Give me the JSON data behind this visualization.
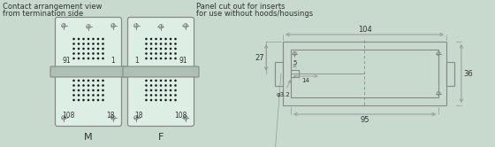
{
  "bg_color": "#c8d9ce",
  "line_color": "#888888",
  "text_color": "#333333",
  "title_left1": "Contact arrangement view",
  "title_left2": "from termination side",
  "title_right1": "Panel cut out for inserts",
  "title_right2": "for use without hoods/housings",
  "label_M": "M",
  "label_F": "F",
  "dim_104": "104",
  "dim_27": "27",
  "dim_5": "5",
  "dim_14": "14",
  "dim_36": "36",
  "dim_95": "95",
  "dim_dia": "φ3.2",
  "connector_facecolor": "#ddeee5",
  "band_facecolor": "#adc0b4",
  "dot_color": "#1a1a1a"
}
